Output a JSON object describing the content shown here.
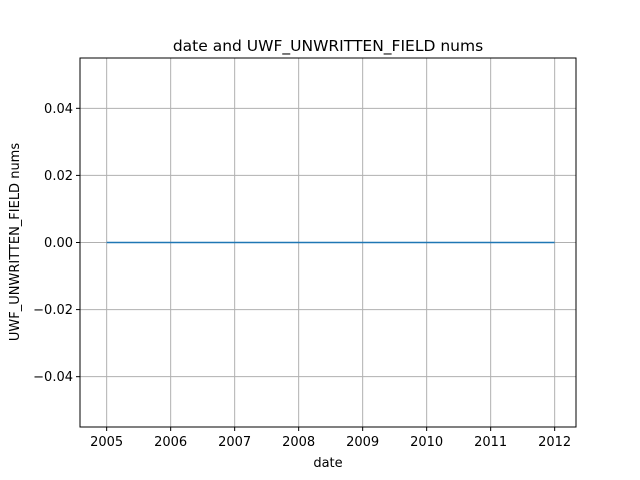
{
  "chart_data": {
    "type": "line",
    "title": "date and UWF_UNWRITTEN_FIELD nums",
    "xlabel": "date",
    "ylabel": "UWF_UNWRITTEN_FIELD nums",
    "x": [
      "2005",
      "2006",
      "2007",
      "2008",
      "2009",
      "2010",
      "2011",
      "2012"
    ],
    "series": [
      {
        "values": [
          0,
          0,
          0,
          0,
          0,
          0,
          0,
          0
        ],
        "color": "#1f77b4"
      }
    ],
    "xlim": [
      "2004-08",
      "2012-05"
    ],
    "ylim": [
      -0.055,
      0.055
    ],
    "xticks": [
      "2005",
      "2006",
      "2007",
      "2008",
      "2009",
      "2010",
      "2011",
      "2012"
    ],
    "yticks": [
      "−0.04",
      "−0.02",
      "0.00",
      "0.02",
      "0.04"
    ],
    "ytick_values": [
      -0.04,
      -0.02,
      0.0,
      0.02,
      0.04
    ],
    "grid": true,
    "grid_color": "#b0b0b0"
  }
}
